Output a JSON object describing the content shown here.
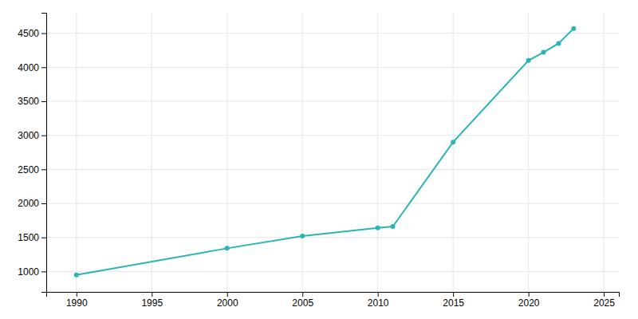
{
  "chart_data": {
    "type": "line",
    "x": [
      1990,
      2000,
      2005,
      2010,
      2011,
      2015,
      2020,
      2021,
      2022,
      2023
    ],
    "values": [
      950,
      1340,
      1520,
      1640,
      1660,
      2900,
      4100,
      4220,
      4350,
      4570
    ],
    "color": "#2ab5b5",
    "marker": "circle",
    "xlim": [
      1988,
      2026
    ],
    "ylim": [
      700,
      4800
    ],
    "xticks": [
      1990,
      1995,
      2000,
      2005,
      2010,
      2015,
      2020,
      2025
    ],
    "yticks": [
      1000,
      1500,
      2000,
      2500,
      3000,
      3500,
      4000,
      4500
    ],
    "grid": true
  }
}
